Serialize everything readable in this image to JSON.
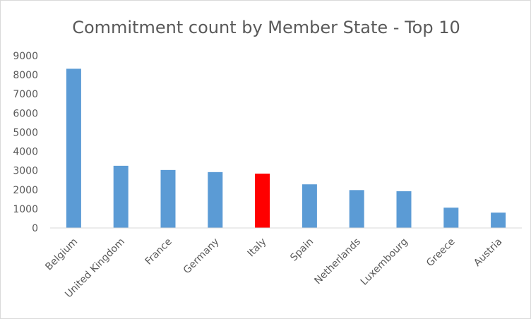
{
  "chart_data": {
    "type": "bar",
    "title": "Commitment count by Member State - Top 10",
    "xlabel": "",
    "ylabel": "",
    "categories": [
      "Belgium",
      "United Kingdom",
      "France",
      "Germany",
      "Italy",
      "Spain",
      "Netherlands",
      "Luxembourg",
      "Greece",
      "Austria"
    ],
    "values": [
      8320,
      3250,
      3030,
      2920,
      2840,
      2280,
      1980,
      1920,
      1060,
      800
    ],
    "ylim": [
      0,
      9000
    ],
    "yticks": [
      0,
      1000,
      2000,
      3000,
      4000,
      5000,
      6000,
      7000,
      8000,
      9000
    ],
    "grid": false,
    "legend": "none",
    "colors": {
      "bar": "#5b9bd5",
      "highlight": "#ff0000",
      "axis": "#d9d9d9",
      "text": "#595959"
    },
    "highlight_category": "Italy"
  }
}
